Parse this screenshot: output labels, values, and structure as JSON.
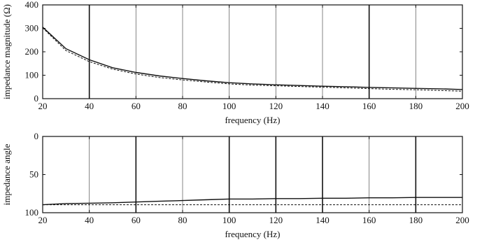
{
  "chart_data": [
    {
      "type": "line",
      "xlabel": "frequency (Hz)",
      "ylabel": "impedance magnitude (Ω)",
      "xlim": [
        20,
        200
      ],
      "ylim": [
        0,
        400
      ],
      "x_ticks": [
        "20",
        "40",
        "60",
        "80",
        "100",
        "120",
        "140",
        "160",
        "180",
        "200"
      ],
      "y_ticks": [
        "0",
        "100",
        "200",
        "300",
        "400"
      ],
      "grid": true,
      "bold_gridlines_x": [
        40,
        160
      ],
      "series": [
        {
          "style": "solid",
          "x": [
            20,
            30,
            40,
            50,
            60,
            70,
            80,
            90,
            100,
            110,
            120,
            130,
            140,
            150,
            160,
            170,
            180,
            190,
            200
          ],
          "y": [
            305,
            213,
            166,
            132,
            112,
            97,
            86,
            76,
            68,
            63,
            59,
            56,
            53,
            51,
            48,
            46,
            44,
            42,
            39
          ]
        },
        {
          "style": "dashed",
          "x": [
            20,
            30,
            40,
            50,
            60,
            70,
            80,
            90,
            100,
            110,
            120,
            130,
            140,
            150,
            160,
            170,
            180,
            190,
            200
          ],
          "y": [
            302,
            205,
            158,
            126,
            105,
            90,
            80,
            71,
            63,
            58,
            55,
            52,
            49,
            46,
            43,
            40,
            38,
            35,
            32
          ]
        }
      ]
    },
    {
      "type": "line",
      "xlabel": "frequency (Hz)",
      "ylabel": "impedance angle",
      "xlim": [
        20,
        200
      ],
      "ylim": [
        0,
        100
      ],
      "y_inverted": true,
      "x_ticks": [
        "20",
        "40",
        "60",
        "80",
        "100",
        "120",
        "140",
        "160",
        "180",
        "200"
      ],
      "y_ticks": [
        "0",
        "50",
        "100"
      ],
      "grid": true,
      "bold_gridlines_x": [
        60,
        100,
        120,
        140,
        180
      ],
      "series": [
        {
          "style": "solid",
          "x": [
            20,
            30,
            40,
            50,
            60,
            70,
            80,
            90,
            100,
            110,
            120,
            130,
            140,
            150,
            160,
            170,
            180,
            190,
            200
          ],
          "y": [
            89.5,
            88,
            87.5,
            87,
            86,
            85,
            84,
            83,
            82,
            82,
            81.5,
            81.5,
            81,
            81,
            80.5,
            80.5,
            80,
            80,
            80
          ]
        },
        {
          "style": "dashed",
          "x": [
            20,
            200
          ],
          "y": [
            89.5,
            89.5
          ]
        }
      ]
    }
  ]
}
